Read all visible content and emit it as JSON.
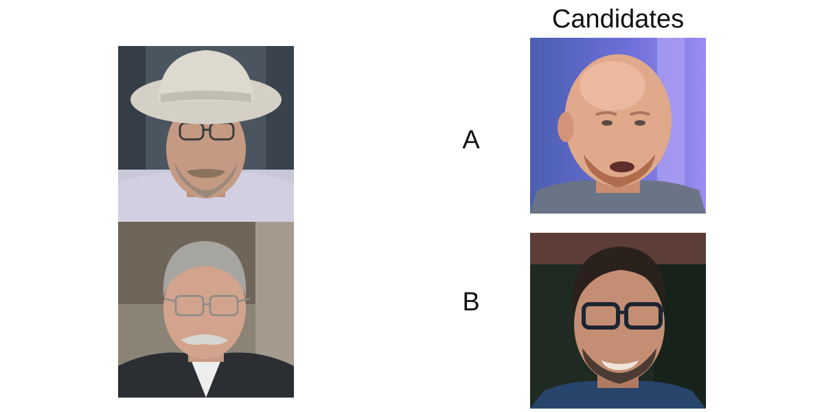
{
  "title": "Candidates",
  "candidates": [
    {
      "label": "A"
    },
    {
      "label": "B"
    }
  ],
  "icons": {
    "ref_top": "man-with-hat-glasses-beard-photo",
    "ref_bottom": "older-man-glasses-mustache-suit-photo",
    "candidate_a": "bald-man-beard-photo",
    "candidate_b": "man-dark-glasses-beard-photo"
  },
  "colors": {
    "background": "#ffffff",
    "text": "#111111"
  }
}
